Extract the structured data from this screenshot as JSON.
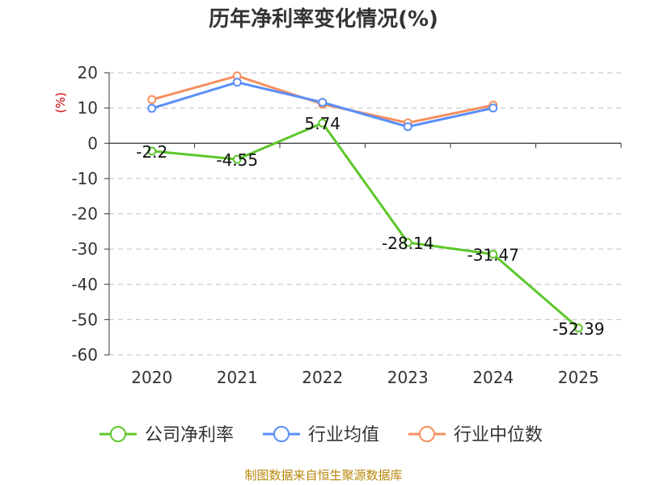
{
  "chart_data": {
    "type": "line",
    "title": "历年净利率变化情况(%)",
    "ylabel": "(%)",
    "xlabel": "",
    "categories": [
      "2020",
      "2021",
      "2022",
      "2023",
      "2024",
      "2025"
    ],
    "ylim": [
      -60,
      20
    ],
    "yticks": [
      20,
      10,
      0,
      -10,
      -20,
      -30,
      -40,
      -50,
      -60
    ],
    "grid": true,
    "legend_position": "bottom",
    "series": [
      {
        "name": "公司净利率",
        "color": "#5cc72b",
        "values": [
          -2.2,
          -4.55,
          5.74,
          -28.14,
          -31.47,
          -52.39
        ],
        "labels": [
          "-2.2",
          "-4.55",
          "5.74",
          "-28.14",
          "-31.47",
          "-52.39"
        ]
      },
      {
        "name": "行业均值",
        "color": "#5b8ff9",
        "values": [
          9.9,
          17.3,
          11.6,
          4.7,
          10.0,
          null
        ]
      },
      {
        "name": "行业中位数",
        "color": "#f6905f",
        "values": [
          12.4,
          19.1,
          11.1,
          5.8,
          10.8,
          null
        ]
      }
    ]
  },
  "source": "制图数据来自恒生聚源数据库"
}
